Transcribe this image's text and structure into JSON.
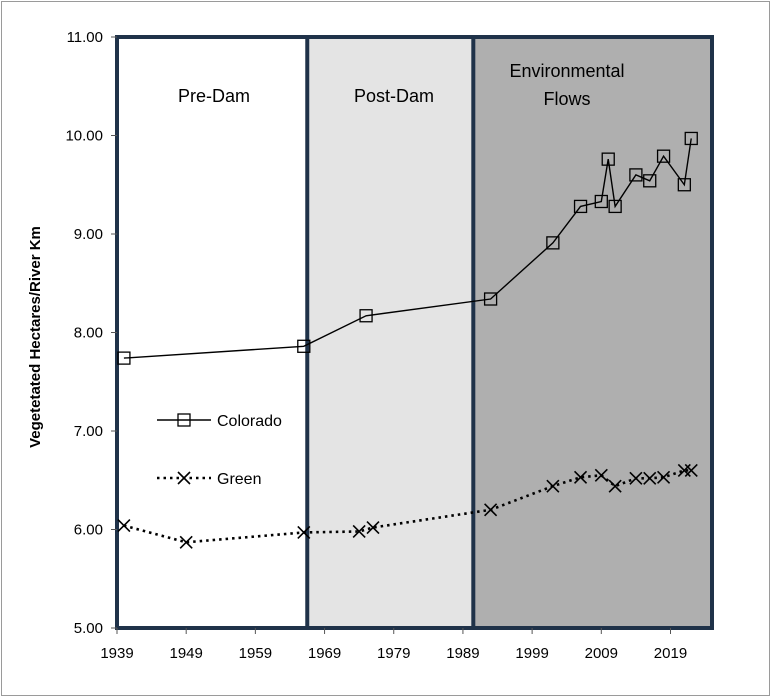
{
  "chart_data": {
    "type": "line",
    "title": "",
    "xlabel": "",
    "ylabel": "Vegetetated Hectares/River Km",
    "xlim": [
      1939,
      2025
    ],
    "ylim": [
      5.0,
      11.0
    ],
    "x_ticks": [
      1939,
      1949,
      1959,
      1969,
      1979,
      1989,
      1999,
      2009,
      2019
    ],
    "x_tick_labels": [
      "1939",
      "1949",
      "1959",
      "1969",
      "1979",
      "1989",
      "1999",
      "2009",
      "2019"
    ],
    "y_ticks": [
      5,
      6,
      7,
      8,
      9,
      10,
      11
    ],
    "y_tick_labels": [
      "5.00",
      "6.00",
      "7.00",
      "8.00",
      "9.00",
      "10.00",
      "11.00"
    ],
    "regions": [
      {
        "name": "pre-dam",
        "label_lines": [
          "Pre-Dam"
        ],
        "x_start": 1939,
        "x_end": 1966.5,
        "fill": "#ffffff"
      },
      {
        "name": "post-dam",
        "label_lines": [
          "Post-Dam"
        ],
        "x_start": 1966.5,
        "x_end": 1990.5,
        "fill": "#e4e4e4"
      },
      {
        "name": "environmental-flows",
        "label_lines": [
          "Environmental",
          "Flows"
        ],
        "x_start": 1990.5,
        "x_end": 2025,
        "fill": "#afafaf"
      }
    ],
    "series": [
      {
        "name": "Colorado",
        "marker": "square",
        "line_style": "solid",
        "x": [
          1940,
          1966,
          1975,
          1993,
          2002,
          2006,
          2009,
          2010,
          2011,
          2014,
          2016,
          2018,
          2021,
          2022
        ],
        "values": [
          7.74,
          7.86,
          8.17,
          8.34,
          8.91,
          9.28,
          9.33,
          9.76,
          9.28,
          9.6,
          9.54,
          9.79,
          9.5,
          9.97
        ]
      },
      {
        "name": "Green",
        "marker": "x",
        "line_style": "dotted",
        "x": [
          1940,
          1949,
          1966,
          1974,
          1976,
          1993,
          2002,
          2006,
          2009,
          2011,
          2014,
          2016,
          2018,
          2021,
          2022
        ],
        "values": [
          6.04,
          5.87,
          5.97,
          5.98,
          6.02,
          6.2,
          6.44,
          6.53,
          6.55,
          6.44,
          6.52,
          6.52,
          6.53,
          6.6,
          6.6
        ]
      }
    ],
    "legend": {
      "placement": "left-middle",
      "entries": [
        "Colorado",
        "Green"
      ]
    },
    "colors": {
      "line": "#000000",
      "region_border": "#1f3249",
      "frame_border": "#9a9a9a"
    }
  }
}
